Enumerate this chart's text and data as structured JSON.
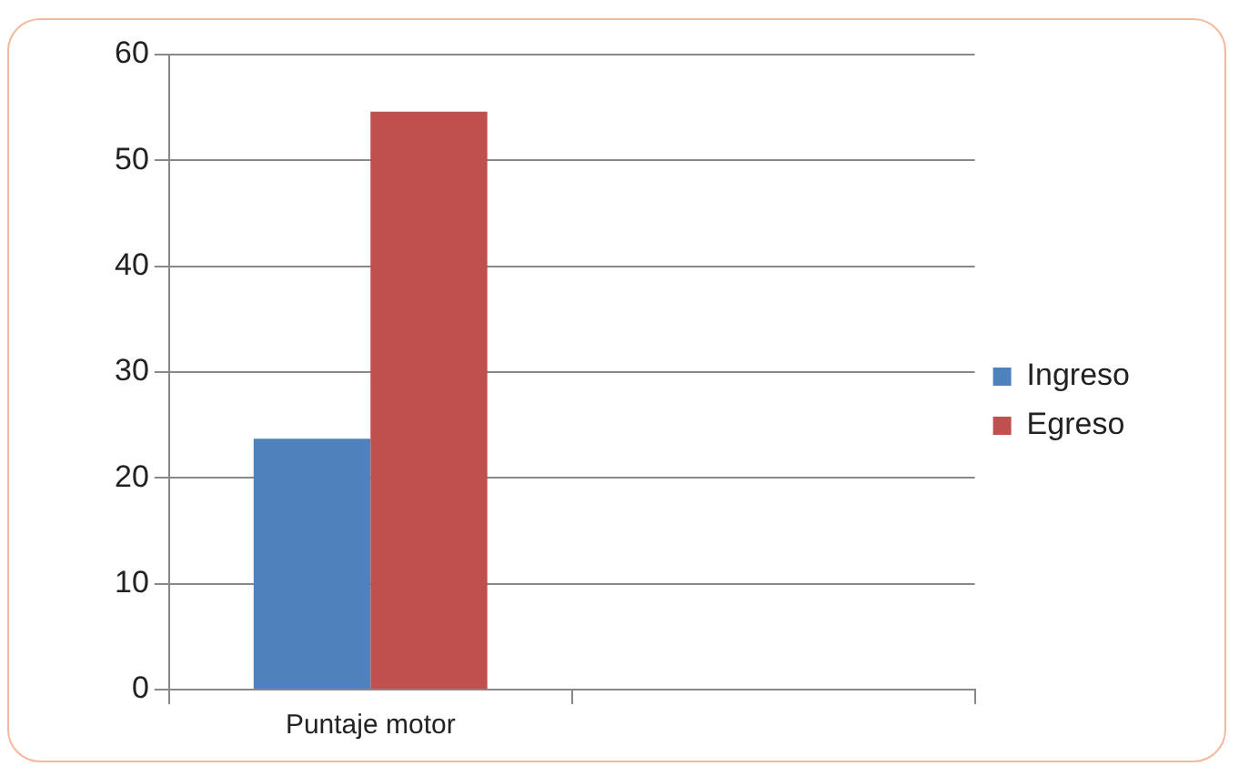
{
  "chart_data": {
    "type": "bar",
    "categories": [
      "Puntaje motor",
      null
    ],
    "series": [
      {
        "name": "Ingreso",
        "color": "#4f81bd",
        "values": [
          23.7,
          null
        ]
      },
      {
        "name": "Egreso",
        "color": "#c0504d",
        "values": [
          54.6,
          null
        ]
      }
    ],
    "ylim": [
      0,
      60
    ],
    "yticks": [
      0,
      10,
      20,
      30,
      40,
      50,
      60
    ],
    "grid": "y",
    "legend": "right"
  }
}
